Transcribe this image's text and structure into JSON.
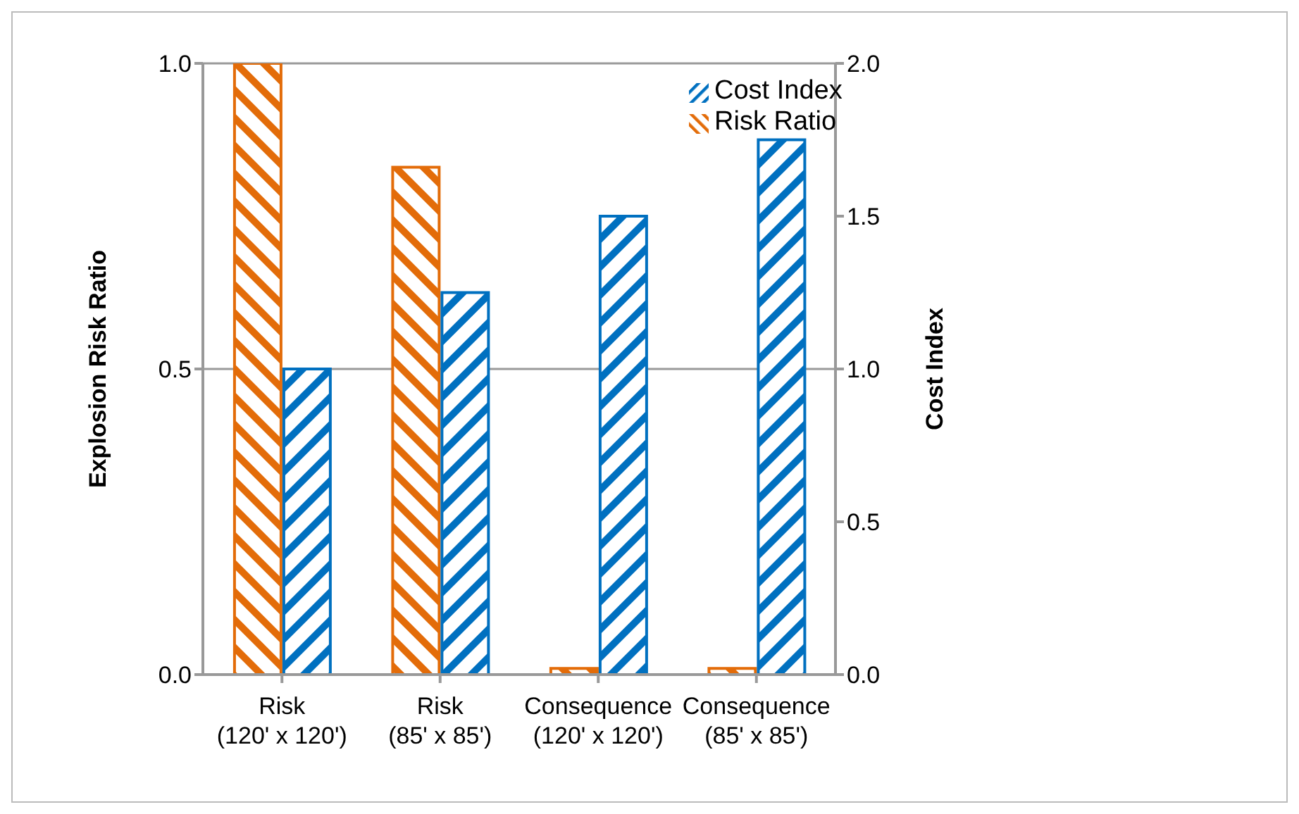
{
  "chart_data": {
    "type": "bar",
    "categories": [
      "Risk\n(120' x 120')",
      "Risk\n(85' x 85')",
      "Consequence\n(120' x 120')",
      "Consequence\n(85' x 85')"
    ],
    "series": [
      {
        "name": "Risk Ratio",
        "color": "#e36c09",
        "values": [
          1.0,
          0.83,
          0.01,
          0.01
        ]
      },
      {
        "name": "Cost Index",
        "color": "#0070c0",
        "values": [
          1.0,
          1.25,
          1.5,
          1.75
        ],
        "axis": "y2"
      }
    ],
    "ylabel": "Explosion Risk Ratio",
    "y2label": "Cost Index",
    "ylim": [
      0,
      1
    ],
    "yticks": [
      {
        "value": 0,
        "label": "0.0"
      },
      {
        "value": 0.5,
        "label": "0.5"
      },
      {
        "value": 1,
        "label": "1.0"
      }
    ],
    "y2lim": [
      0,
      2
    ],
    "y2ticks": [
      {
        "value": 0,
        "label": "0.0"
      },
      {
        "value": 0.5,
        "label": "0.5"
      },
      {
        "value": 1,
        "label": "1.0"
      },
      {
        "value": 1.5,
        "label": "1.5"
      },
      {
        "value": 2,
        "label": "2.0"
      }
    ],
    "grid": "y",
    "legend": "top right"
  }
}
